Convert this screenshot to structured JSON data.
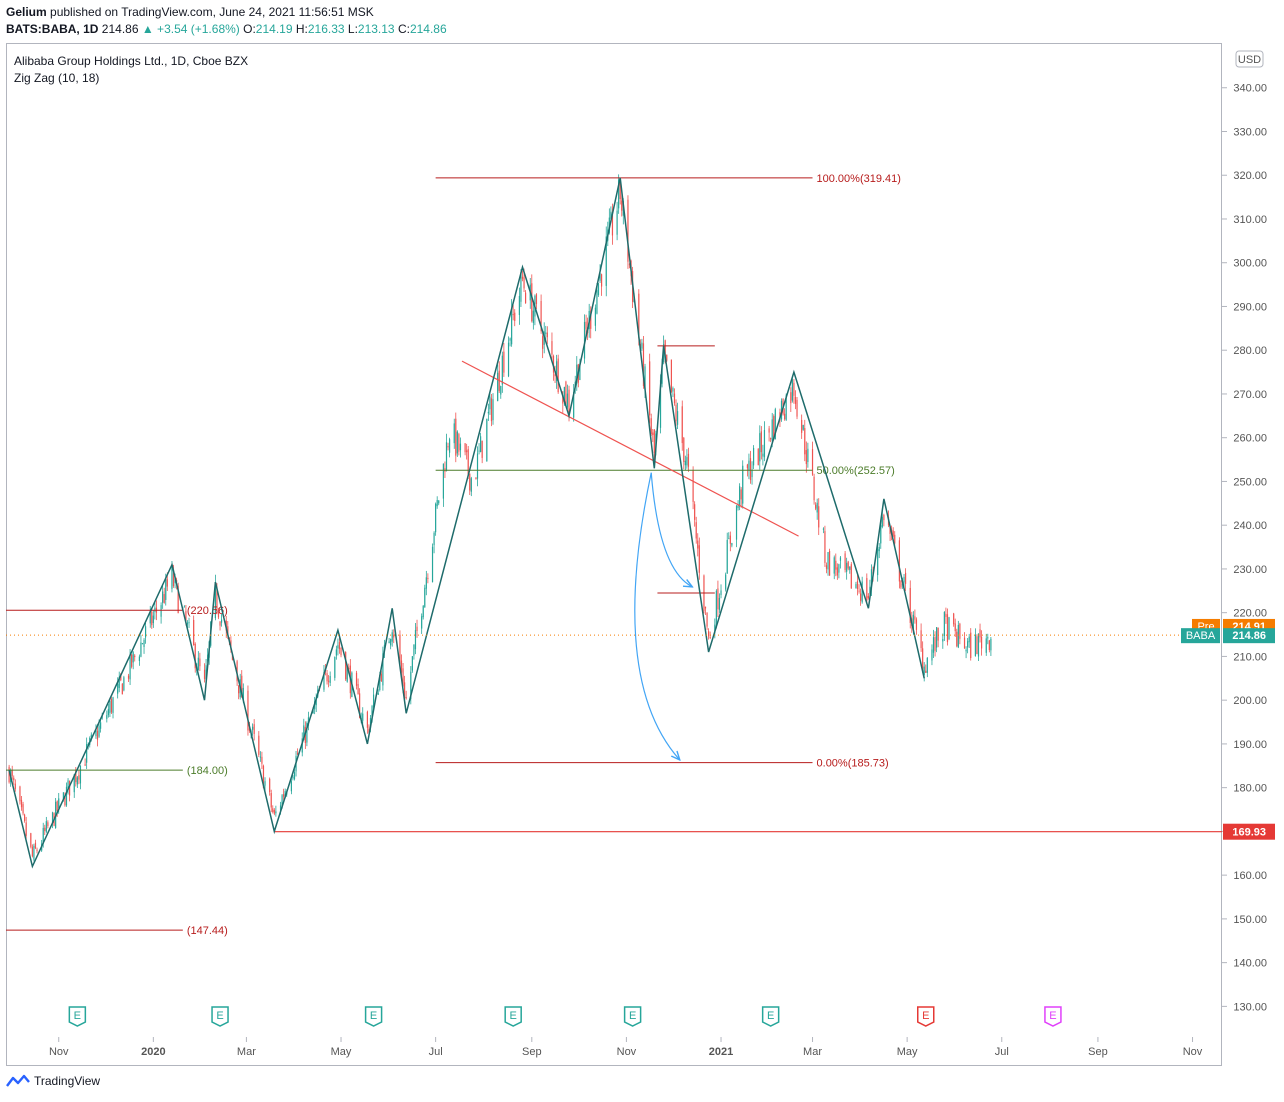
{
  "header": {
    "publisher": "Gelium",
    "published_text": "published on TradingView.com, June 24, 2021 11:56:51 MSK",
    "symbol": "BATS:BABA, 1D",
    "last": "214.86",
    "change": "▲ +3.54 (+1.68%)",
    "o_label": "O:",
    "o": "214.19",
    "h_label": "H:",
    "h": "216.33",
    "l_label": "L:",
    "l": "213.13",
    "c_label": "C:",
    "c": "214.86"
  },
  "legend": {
    "name": "Alibaba Group Holdings Ltd., 1D, Cboe BZX",
    "indicator": "Zig Zag (10, 18)"
  },
  "footer": {
    "brand": "TradingView"
  },
  "colors": {
    "up": "#26a69a",
    "down": "#ef5350",
    "zigzag": "#1e6b6b",
    "fib": "#b71c1c",
    "mid": "#4c7c2a",
    "support": "#e53935",
    "trend": "#ef5350",
    "arrow": "#42a5f5",
    "pre": "#f57c00",
    "last": "#26a69a"
  },
  "chart_data": {
    "type": "candlestick",
    "currency": "USD",
    "y_ticks": [
      130,
      140,
      150,
      160,
      170,
      180,
      190,
      200,
      210,
      220,
      230,
      240,
      250,
      260,
      270,
      280,
      290,
      300,
      310,
      320,
      330,
      340
    ],
    "ylim": [
      123,
      350
    ],
    "x_ticks": [
      {
        "label": "Nov",
        "date": "2019-11-01"
      },
      {
        "label": "2020",
        "date": "2020-01-01"
      },
      {
        "label": "Mar",
        "date": "2020-03-01"
      },
      {
        "label": "May",
        "date": "2020-05-01"
      },
      {
        "label": "Jul",
        "date": "2020-07-01"
      },
      {
        "label": "Sep",
        "date": "2020-09-01"
      },
      {
        "label": "Nov",
        "date": "2020-11-01"
      },
      {
        "label": "2021",
        "date": "2021-01-01"
      },
      {
        "label": "Mar",
        "date": "2021-03-01"
      },
      {
        "label": "May",
        "date": "2021-05-01"
      },
      {
        "label": "Jul",
        "date": "2021-07-01"
      },
      {
        "label": "Sep",
        "date": "2021-09-01"
      },
      {
        "label": "Nov",
        "date": "2021-11-01"
      }
    ],
    "xlim": [
      "2019-09-28",
      "2021-11-20"
    ],
    "zigzag": [
      {
        "date": "2019-09-30",
        "price": 184.0
      },
      {
        "date": "2019-10-15",
        "price": 162.0
      },
      {
        "date": "2020-01-13",
        "price": 231.0
      },
      {
        "date": "2020-02-03",
        "price": 200.0
      },
      {
        "date": "2020-02-10",
        "price": 227.0
      },
      {
        "date": "2020-03-19",
        "price": 170.0
      },
      {
        "date": "2020-04-29",
        "price": 216.0
      },
      {
        "date": "2020-05-18",
        "price": 190.0
      },
      {
        "date": "2020-06-03",
        "price": 221.0
      },
      {
        "date": "2020-06-12",
        "price": 197.0
      },
      {
        "date": "2020-08-26",
        "price": 299.0
      },
      {
        "date": "2020-09-25",
        "price": 265.0
      },
      {
        "date": "2020-10-28",
        "price": 319.41
      },
      {
        "date": "2020-11-19",
        "price": 253.0
      },
      {
        "date": "2020-11-25",
        "price": 281.0
      },
      {
        "date": "2020-12-24",
        "price": 211.0
      },
      {
        "date": "2021-02-17",
        "price": 275.0
      },
      {
        "date": "2021-04-06",
        "price": 221.0
      },
      {
        "date": "2021-04-16",
        "price": 246.0
      },
      {
        "date": "2021-05-12",
        "price": 205.0
      }
    ],
    "close_path": [
      {
        "date": "2019-09-30",
        "price": 184
      },
      {
        "date": "2019-10-15",
        "price": 164
      },
      {
        "date": "2019-11-15",
        "price": 185
      },
      {
        "date": "2019-12-15",
        "price": 206
      },
      {
        "date": "2020-01-13",
        "price": 228
      },
      {
        "date": "2020-02-03",
        "price": 203
      },
      {
        "date": "2020-02-10",
        "price": 224
      },
      {
        "date": "2020-03-19",
        "price": 173
      },
      {
        "date": "2020-04-29",
        "price": 213
      },
      {
        "date": "2020-05-18",
        "price": 193
      },
      {
        "date": "2020-06-03",
        "price": 218
      },
      {
        "date": "2020-06-12",
        "price": 200
      },
      {
        "date": "2020-07-10",
        "price": 262
      },
      {
        "date": "2020-07-25",
        "price": 250
      },
      {
        "date": "2020-08-26",
        "price": 296
      },
      {
        "date": "2020-09-25",
        "price": 268
      },
      {
        "date": "2020-10-28",
        "price": 316
      },
      {
        "date": "2020-11-19",
        "price": 256
      },
      {
        "date": "2020-11-25",
        "price": 278
      },
      {
        "date": "2020-12-10",
        "price": 254
      },
      {
        "date": "2020-12-24",
        "price": 214
      },
      {
        "date": "2021-01-15",
        "price": 250
      },
      {
        "date": "2021-02-17",
        "price": 272
      },
      {
        "date": "2021-03-10",
        "price": 232
      },
      {
        "date": "2021-04-06",
        "price": 224
      },
      {
        "date": "2021-04-16",
        "price": 243
      },
      {
        "date": "2021-05-12",
        "price": 208
      },
      {
        "date": "2021-05-25",
        "price": 217
      },
      {
        "date": "2021-06-10",
        "price": 212
      },
      {
        "date": "2021-06-24",
        "price": 214.86
      }
    ],
    "candles_end": "2021-06-24",
    "levels": [
      {
        "name": "fib-100",
        "start": "2020-07-01",
        "end": "2021-03-01",
        "price": 319.41,
        "label": "100.00%(319.41)",
        "color": "fib"
      },
      {
        "name": "fib-50",
        "start": "2020-07-01",
        "end": "2021-03-01",
        "price": 252.57,
        "label": "50.00%(252.57)",
        "color": "mid"
      },
      {
        "name": "fib-0",
        "start": "2020-07-01",
        "end": "2021-03-01",
        "price": 185.73,
        "label": "0.00%(185.73)",
        "color": "fib"
      },
      {
        "name": "level-220",
        "start": "2019-09-28",
        "end": "2020-01-20",
        "price": 220.56,
        "label": "(220.56)",
        "color": "fib"
      },
      {
        "name": "level-184",
        "start": "2019-09-28",
        "end": "2020-01-20",
        "price": 184.0,
        "label": "(184.00)",
        "color": "mid"
      },
      {
        "name": "level-147",
        "start": "2019-09-28",
        "end": "2020-01-20",
        "price": 147.44,
        "label": "(147.44)",
        "color": "fib"
      },
      {
        "name": "resistance-281",
        "start": "2020-11-21",
        "end": "2020-12-28",
        "price": 281.0,
        "label": "",
        "color": "fib"
      },
      {
        "name": "target-224",
        "start": "2020-11-21",
        "end": "2020-12-28",
        "price": 224.5,
        "label": "",
        "color": "fib"
      }
    ],
    "support": {
      "start": "2020-03-19",
      "price": 169.93,
      "label": "169.93"
    },
    "trendline": {
      "start": {
        "date": "2020-07-18",
        "price": 277.5
      },
      "end": {
        "date": "2021-02-20",
        "price": 237.5
      }
    },
    "arrows": [
      {
        "from": {
          "date": "2020-11-17",
          "price": 252
        },
        "ctrl": {
          "date": "2020-11-22",
          "price": 230
        },
        "to": {
          "date": "2020-12-13",
          "price": 226
        }
      },
      {
        "from": {
          "date": "2020-11-17",
          "price": 252
        },
        "ctrl": {
          "date": "2020-10-20",
          "price": 205
        },
        "to": {
          "date": "2020-12-05",
          "price": 186.5
        }
      }
    ],
    "price_labels": {
      "pre_label": "Pre",
      "pre_value": "214.91",
      "pre": 214.91,
      "last_label": "BABA",
      "last_value": "214.86",
      "last": 214.86,
      "currency_label": "USD"
    },
    "earnings": [
      {
        "date": "2019-11-13",
        "label": "E",
        "state": "past"
      },
      {
        "date": "2020-02-13",
        "label": "E",
        "state": "past"
      },
      {
        "date": "2020-05-22",
        "label": "E",
        "state": "past"
      },
      {
        "date": "2020-08-20",
        "label": "E",
        "state": "past"
      },
      {
        "date": "2020-11-05",
        "label": "E",
        "state": "past"
      },
      {
        "date": "2021-02-02",
        "label": "E",
        "state": "past"
      },
      {
        "date": "2021-05-13",
        "label": "E",
        "state": "negative"
      },
      {
        "date": "2021-08-03",
        "label": "E",
        "state": "future"
      }
    ]
  }
}
